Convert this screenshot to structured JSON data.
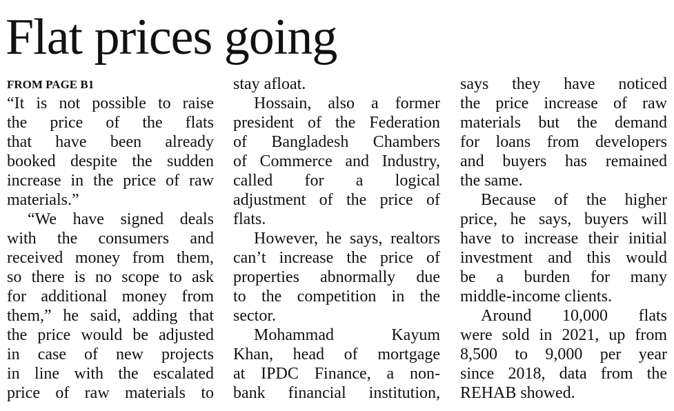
{
  "headline": "Flat prices going",
  "jump": "FROM PAGE B1",
  "columns": [
    {
      "paragraphs": [
        {
          "lines": [
            "“It is not possible to raise",
            "the price of the flats",
            "that have been already",
            "booked despite the sudden",
            "increase in the price of raw",
            "materials.”"
          ]
        },
        {
          "lines": [
            "“We have signed deals",
            "with the consumers and",
            "received money from them,",
            "so there is no scope to ask",
            "for additional money from",
            "them,” he said, adding that",
            "the price would be adjusted",
            "in case of new projects",
            "in line with the escalated",
            "price of raw materials to"
          ]
        }
      ]
    },
    {
      "paragraphs": [
        {
          "lines": [
            "stay afloat."
          ]
        },
        {
          "lines": [
            "Hossain, also a former",
            "president of the Federation",
            "of Bangladesh Chambers",
            "of Commerce and Industry,",
            "called for a logical",
            "adjustment of the price of",
            "flats."
          ]
        },
        {
          "lines": [
            "However, he says, realtors",
            "can’t increase the price of",
            "properties abnormally due",
            "to the competition in the",
            "sector."
          ]
        },
        {
          "lines": [
            "Mohammad Kayum",
            "Khan, head of mortgage",
            "at IPDC Finance, a non-",
            "bank financial institution,"
          ]
        }
      ]
    },
    {
      "paragraphs": [
        {
          "lines": [
            "says they have noticed",
            "the price increase of raw",
            "materials but the demand",
            "for loans from developers",
            "and buyers has remained",
            "the same."
          ]
        },
        {
          "lines": [
            "Because of the higher",
            "price, he says, buyers will",
            "have to increase their initial",
            "investment and this would",
            "be a burden for many",
            "middle-income clients."
          ]
        },
        {
          "lines": [
            "Around 10,000 flats",
            "were sold in 2021, up from",
            "8,500 to 9,000 per year",
            "since 2018, data from the",
            "REHAB showed."
          ]
        }
      ]
    }
  ]
}
